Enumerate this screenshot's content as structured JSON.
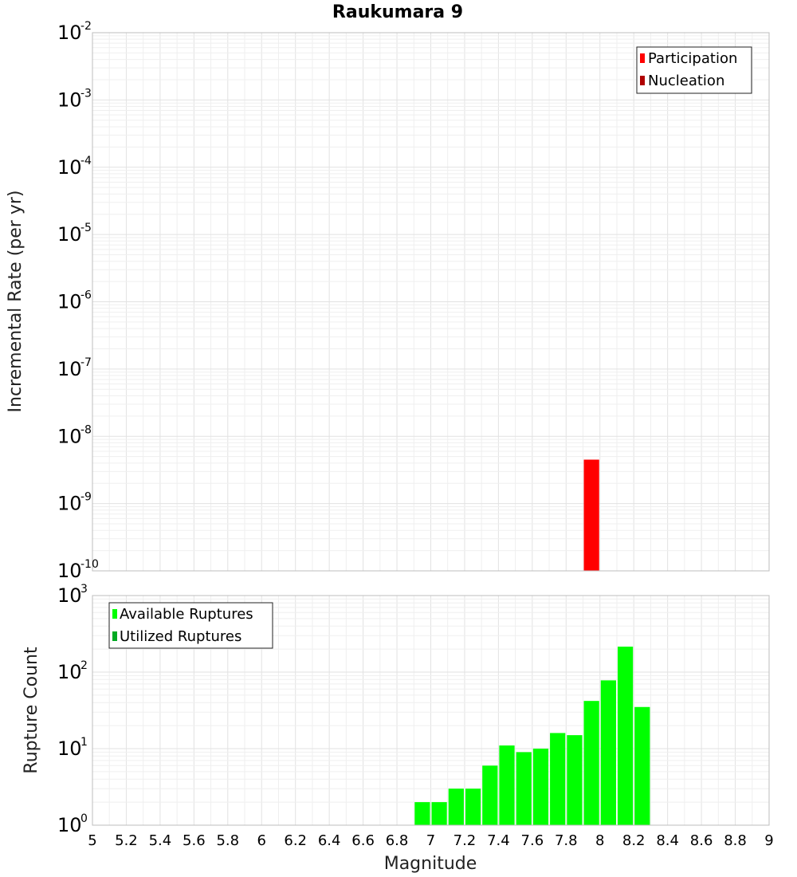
{
  "chart_data": [
    {
      "type": "bar",
      "title": "Raukumara 9",
      "xlabel": "",
      "ylabel": "Incremental Rate (per yr)",
      "y_scale": "log",
      "xlim": [
        5,
        9
      ],
      "ylim_exponents": [
        -10,
        -2
      ],
      "grid": true,
      "legend_position": "top-right",
      "legend": [
        {
          "name": "Participation",
          "color": "#ff0000"
        },
        {
          "name": "Nucleation",
          "color": "#b00000"
        }
      ],
      "series": [
        {
          "name": "Participation",
          "color": "#ff0000",
          "bin_width": 0.1,
          "points": [
            {
              "x": 7.95,
              "y": 4.5e-09
            }
          ]
        },
        {
          "name": "Nucleation",
          "color": "#b00000",
          "bin_width": 0.1,
          "points": []
        }
      ]
    },
    {
      "type": "bar",
      "title": "",
      "xlabel": "Magnitude",
      "ylabel": "Rupture Count",
      "y_scale": "log",
      "xlim": [
        5,
        9
      ],
      "ylim_exponents": [
        0,
        3
      ],
      "x_ticks": [
        "5",
        "5.2",
        "5.4",
        "5.6",
        "5.8",
        "6",
        "6.2",
        "6.4",
        "6.6",
        "6.8",
        "7",
        "7.2",
        "7.4",
        "7.6",
        "7.8",
        "8",
        "8.2",
        "8.4",
        "8.6",
        "8.8",
        "9"
      ],
      "grid": true,
      "legend_position": "top-left",
      "legend": [
        {
          "name": "Available Ruptures",
          "color": "#00ff00"
        },
        {
          "name": "Utilized Ruptures",
          "color": "#00aa22"
        }
      ],
      "series": [
        {
          "name": "Available Ruptures",
          "color": "#00ff00",
          "bin_width": 0.1,
          "points": [
            {
              "x": 6.25,
              "y": 1
            },
            {
              "x": 6.85,
              "y": 1
            },
            {
              "x": 6.95,
              "y": 2
            },
            {
              "x": 7.05,
              "y": 2
            },
            {
              "x": 7.15,
              "y": 3
            },
            {
              "x": 7.25,
              "y": 3
            },
            {
              "x": 7.35,
              "y": 6
            },
            {
              "x": 7.45,
              "y": 11
            },
            {
              "x": 7.55,
              "y": 9
            },
            {
              "x": 7.65,
              "y": 10
            },
            {
              "x": 7.75,
              "y": 16
            },
            {
              "x": 7.85,
              "y": 15
            },
            {
              "x": 7.95,
              "y": 42
            },
            {
              "x": 8.05,
              "y": 78
            },
            {
              "x": 8.15,
              "y": 215
            },
            {
              "x": 8.25,
              "y": 35
            }
          ]
        },
        {
          "name": "Utilized Ruptures",
          "color": "#00aa22",
          "bin_width": 0.1,
          "points": [
            {
              "x": 7.45,
              "y": 1
            },
            {
              "x": 7.95,
              "y": 1
            }
          ]
        }
      ]
    }
  ]
}
